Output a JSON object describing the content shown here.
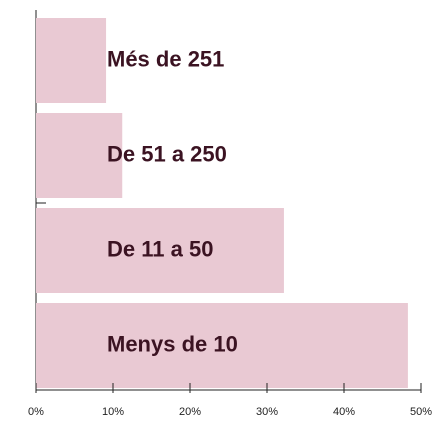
{
  "chart_data": {
    "type": "bar",
    "orientation": "horizontal",
    "categories": [
      "Més de 251",
      "De 51 a 250",
      "De 11 a 50",
      "Menys de 10"
    ],
    "values": [
      9.1,
      11.2,
      32.2,
      48.3
    ],
    "color": "#e9c9d3",
    "xlim": [
      0,
      50
    ],
    "xticks": [
      {
        "value": 0,
        "label": "0%"
      },
      {
        "value": 10,
        "label": "10%"
      },
      {
        "value": 20,
        "label": "20%"
      },
      {
        "value": 30,
        "label": "30%"
      },
      {
        "value": 40,
        "label": "40%"
      },
      {
        "value": 50,
        "label": "50%"
      }
    ]
  }
}
